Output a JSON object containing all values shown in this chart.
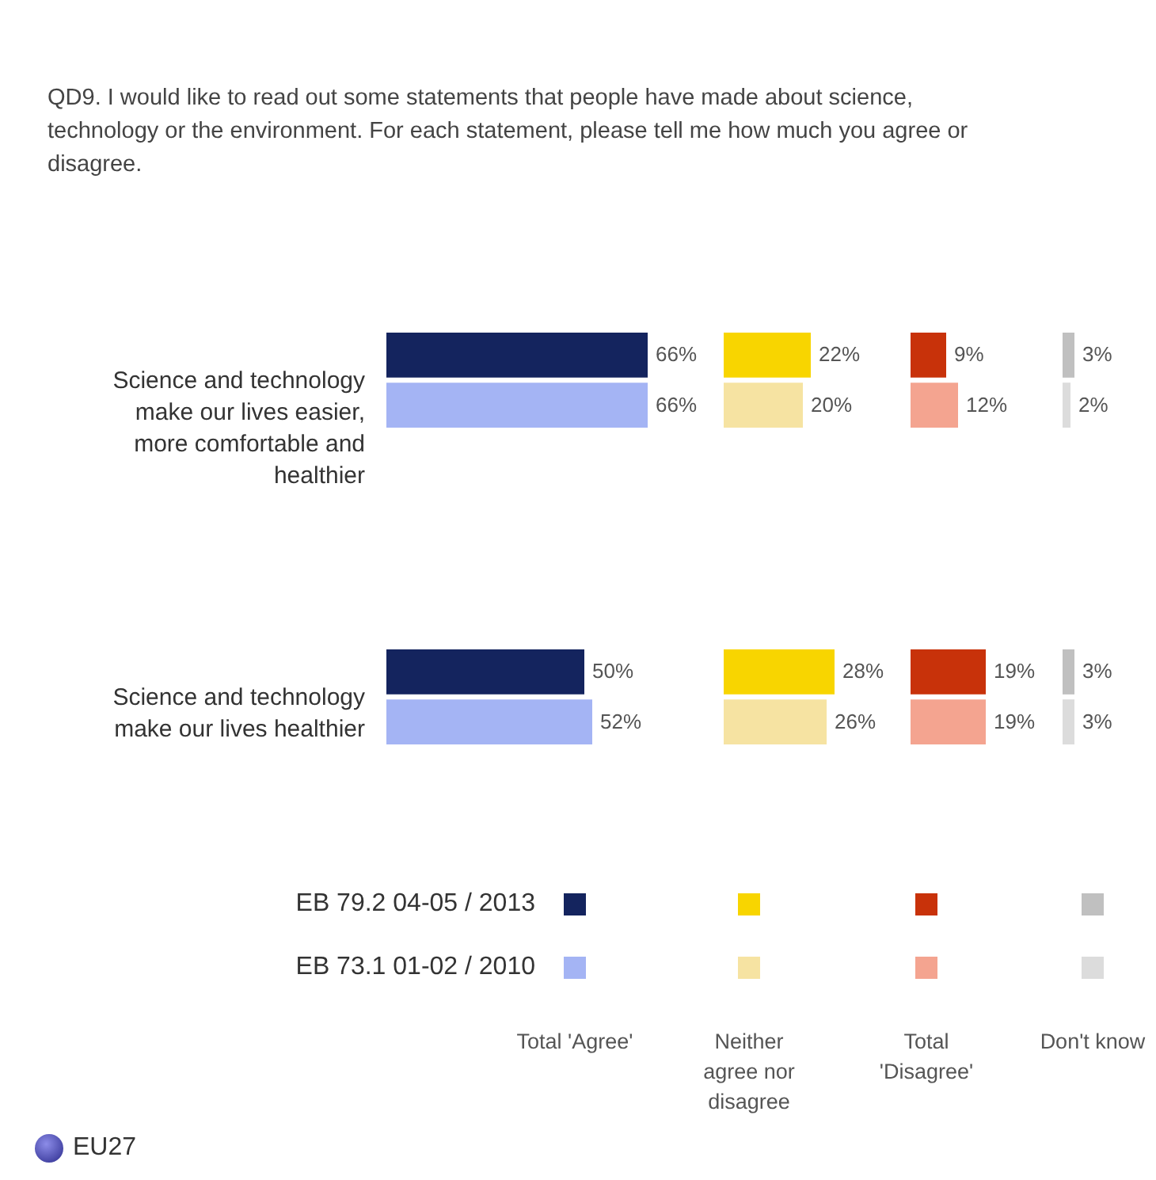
{
  "chart_data": [
    {
      "type": "bar",
      "orientation": "horizontal",
      "title": "QD9. I would like to read out some statements that people have made about science, technology or the environment. For each statement, please tell me how much you agree or disagree.",
      "xlabel": "Total 'Agree'",
      "categories": [
        "Science and technology make our lives easier, more comfortable and healthier",
        "Science and technology make our lives healthier"
      ],
      "tick_labels": "y",
      "legend": "bottom",
      "annotations": [
        "EU27"
      ],
      "series": [
        {
          "name": "EB 79.2 04-05 / 2013",
          "color": "#14245e",
          "values": [
            66,
            50
          ],
          "value_labels": [
            "66%",
            "50%"
          ]
        },
        {
          "name": "EB 73.1 01-02 / 2010",
          "color": "#a4b4f4",
          "values": [
            66,
            52
          ],
          "value_labels": [
            "66%",
            "52%"
          ]
        }
      ]
    },
    {
      "type": "bar",
      "orientation": "horizontal",
      "xlabel": "Neither agree nor disagree",
      "categories": [
        null,
        null
      ],
      "tick_labels": false,
      "series": [
        {
          "color": "#f8d500",
          "values": [
            22,
            28
          ],
          "value_labels": [
            "22%",
            "28%"
          ]
        },
        {
          "color": "#f6e3a2",
          "values": [
            20,
            26
          ],
          "value_labels": [
            "20%",
            "26%"
          ]
        }
      ]
    },
    {
      "type": "bar",
      "orientation": "horizontal",
      "xlabel": "Total 'Disagree'",
      "categories": [
        null,
        null
      ],
      "tick_labels": false,
      "series": [
        {
          "color": "#c8320a",
          "values": [
            9,
            19
          ],
          "value_labels": [
            "9%",
            "19%"
          ]
        },
        {
          "color": "#f4a490",
          "values": [
            12,
            19
          ],
          "value_labels": [
            "12%",
            "19%"
          ]
        }
      ]
    },
    {
      "type": "bar",
      "orientation": "horizontal",
      "xlabel": "Don't know",
      "categories": [
        null,
        null
      ],
      "tick_labels": false,
      "series": [
        {
          "color": "#c0c0c0",
          "values": [
            3,
            3
          ],
          "value_labels": [
            "3%",
            "3%"
          ]
        },
        {
          "color": "#dcdcdc",
          "values": [
            2,
            3
          ],
          "value_labels": [
            "2%",
            "3%"
          ]
        }
      ]
    }
  ]
}
